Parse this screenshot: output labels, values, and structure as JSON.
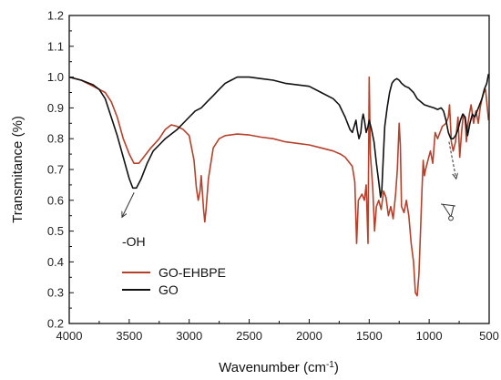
{
  "chart_data": {
    "type": "line",
    "title": "",
    "xlabel": "Wavenumber (cm",
    "xlabel_sup": "-1",
    "xlabel_close": ")",
    "ylabel": "Transmitance (%)",
    "xlim": [
      4000,
      500
    ],
    "ylim": [
      0.2,
      1.2
    ],
    "x_reversed": true,
    "x_ticks": [
      4000,
      3500,
      3000,
      2500,
      2000,
      1500,
      1000,
      500
    ],
    "x_tick_labels": [
      "4000",
      "3500",
      "3000",
      "2500",
      "2000",
      "1500",
      "1000",
      "500"
    ],
    "y_ticks": [
      0.2,
      0.3,
      0.4,
      0.5,
      0.6,
      0.7,
      0.8,
      0.9,
      1.0,
      1.1,
      1.2
    ],
    "y_tick_labels": [
      "0.2",
      "0.3",
      "0.4",
      "0.5",
      "0.6",
      "0.7",
      "0.8",
      "0.9",
      "1.0",
      "1.1",
      "1.2"
    ],
    "grid": false,
    "legend_position": "lower-left",
    "series": [
      {
        "name": "GO-EHBPE",
        "color": "#b5412c",
        "points": [
          [
            4000,
            1.0
          ],
          [
            3900,
            0.99
          ],
          [
            3800,
            0.97
          ],
          [
            3750,
            0.96
          ],
          [
            3700,
            0.95
          ],
          [
            3650,
            0.92
          ],
          [
            3600,
            0.87
          ],
          [
            3550,
            0.8
          ],
          [
            3500,
            0.75
          ],
          [
            3460,
            0.72
          ],
          [
            3420,
            0.72
          ],
          [
            3380,
            0.74
          ],
          [
            3320,
            0.77
          ],
          [
            3250,
            0.8
          ],
          [
            3200,
            0.83
          ],
          [
            3150,
            0.845
          ],
          [
            3100,
            0.84
          ],
          [
            3050,
            0.83
          ],
          [
            3000,
            0.81
          ],
          [
            2960,
            0.73
          ],
          [
            2940,
            0.64
          ],
          [
            2925,
            0.6
          ],
          [
            2910,
            0.63
          ],
          [
            2900,
            0.68
          ],
          [
            2880,
            0.57
          ],
          [
            2870,
            0.53
          ],
          [
            2860,
            0.57
          ],
          [
            2840,
            0.67
          ],
          [
            2800,
            0.77
          ],
          [
            2750,
            0.8
          ],
          [
            2700,
            0.81
          ],
          [
            2600,
            0.815
          ],
          [
            2500,
            0.812
          ],
          [
            2400,
            0.805
          ],
          [
            2300,
            0.8
          ],
          [
            2200,
            0.79
          ],
          [
            2100,
            0.785
          ],
          [
            2000,
            0.78
          ],
          [
            1900,
            0.77
          ],
          [
            1800,
            0.76
          ],
          [
            1740,
            0.75
          ],
          [
            1700,
            0.74
          ],
          [
            1660,
            0.72
          ],
          [
            1640,
            0.71
          ],
          [
            1620,
            0.66
          ],
          [
            1605,
            0.46
          ],
          [
            1590,
            0.6
          ],
          [
            1560,
            0.62
          ],
          [
            1540,
            0.6
          ],
          [
            1525,
            0.65
          ],
          [
            1510,
            0.46
          ],
          [
            1500,
            1.0
          ],
          [
            1490,
            0.75
          ],
          [
            1470,
            0.64
          ],
          [
            1455,
            0.5
          ],
          [
            1440,
            0.58
          ],
          [
            1420,
            0.6
          ],
          [
            1400,
            0.57
          ],
          [
            1380,
            0.63
          ],
          [
            1360,
            0.61
          ],
          [
            1340,
            0.55
          ],
          [
            1320,
            0.58
          ],
          [
            1300,
            0.54
          ],
          [
            1280,
            0.62
          ],
          [
            1265,
            0.7
          ],
          [
            1250,
            0.85
          ],
          [
            1240,
            0.78
          ],
          [
            1230,
            0.58
          ],
          [
            1210,
            0.56
          ],
          [
            1190,
            0.6
          ],
          [
            1170,
            0.55
          ],
          [
            1150,
            0.46
          ],
          [
            1130,
            0.4
          ],
          [
            1115,
            0.3
          ],
          [
            1100,
            0.29
          ],
          [
            1085,
            0.36
          ],
          [
            1070,
            0.52
          ],
          [
            1060,
            0.63
          ],
          [
            1050,
            0.73
          ],
          [
            1040,
            0.68
          ],
          [
            1030,
            0.7
          ],
          [
            1010,
            0.73
          ],
          [
            990,
            0.76
          ],
          [
            970,
            0.72
          ],
          [
            950,
            0.82
          ],
          [
            930,
            0.8
          ],
          [
            910,
            0.82
          ],
          [
            890,
            0.84
          ],
          [
            860,
            0.85
          ],
          [
            840,
            0.87
          ],
          [
            830,
            0.91
          ],
          [
            815,
            0.79
          ],
          [
            800,
            0.76
          ],
          [
            780,
            0.79
          ],
          [
            760,
            0.87
          ],
          [
            745,
            0.74
          ],
          [
            730,
            0.82
          ],
          [
            715,
            0.88
          ],
          [
            700,
            0.86
          ],
          [
            690,
            0.79
          ],
          [
            680,
            0.84
          ],
          [
            665,
            0.88
          ],
          [
            650,
            0.91
          ],
          [
            630,
            0.85
          ],
          [
            610,
            0.89
          ],
          [
            590,
            0.85
          ],
          [
            575,
            0.9
          ],
          [
            560,
            0.93
          ],
          [
            545,
            0.95
          ],
          [
            530,
            0.96
          ],
          [
            515,
            0.9
          ],
          [
            505,
            0.86
          ]
        ]
      },
      {
        "name": "GO",
        "color": "#111111",
        "points": [
          [
            4000,
            1.0
          ],
          [
            3900,
            0.99
          ],
          [
            3800,
            0.975
          ],
          [
            3750,
            0.96
          ],
          [
            3700,
            0.93
          ],
          [
            3650,
            0.87
          ],
          [
            3600,
            0.81
          ],
          [
            3550,
            0.74
          ],
          [
            3500,
            0.67
          ],
          [
            3470,
            0.64
          ],
          [
            3440,
            0.64
          ],
          [
            3400,
            0.67
          ],
          [
            3350,
            0.72
          ],
          [
            3300,
            0.76
          ],
          [
            3250,
            0.78
          ],
          [
            3200,
            0.8
          ],
          [
            3100,
            0.83
          ],
          [
            3000,
            0.87
          ],
          [
            2950,
            0.89
          ],
          [
            2900,
            0.9
          ],
          [
            2850,
            0.92
          ],
          [
            2800,
            0.94
          ],
          [
            2750,
            0.96
          ],
          [
            2700,
            0.98
          ],
          [
            2650,
            0.99
          ],
          [
            2600,
            1.0
          ],
          [
            2500,
            1.0
          ],
          [
            2400,
            0.995
          ],
          [
            2300,
            0.99
          ],
          [
            2200,
            0.98
          ],
          [
            2100,
            0.975
          ],
          [
            2000,
            0.97
          ],
          [
            1900,
            0.95
          ],
          [
            1800,
            0.93
          ],
          [
            1750,
            0.91
          ],
          [
            1700,
            0.87
          ],
          [
            1660,
            0.83
          ],
          [
            1640,
            0.82
          ],
          [
            1625,
            0.84
          ],
          [
            1610,
            0.86
          ],
          [
            1600,
            0.83
          ],
          [
            1585,
            0.8
          ],
          [
            1570,
            0.82
          ],
          [
            1560,
            0.86
          ],
          [
            1550,
            0.88
          ],
          [
            1540,
            0.86
          ],
          [
            1525,
            0.82
          ],
          [
            1510,
            0.84
          ],
          [
            1500,
            0.86
          ],
          [
            1480,
            0.83
          ],
          [
            1460,
            0.79
          ],
          [
            1440,
            0.72
          ],
          [
            1420,
            0.66
          ],
          [
            1405,
            0.61
          ],
          [
            1395,
            0.63
          ],
          [
            1380,
            0.76
          ],
          [
            1370,
            0.84
          ],
          [
            1350,
            0.9
          ],
          [
            1330,
            0.95
          ],
          [
            1310,
            0.98
          ],
          [
            1290,
            0.99
          ],
          [
            1270,
            0.995
          ],
          [
            1250,
            0.99
          ],
          [
            1230,
            0.98
          ],
          [
            1200,
            0.97
          ],
          [
            1170,
            0.965
          ],
          [
            1130,
            0.95
          ],
          [
            1100,
            0.93
          ],
          [
            1070,
            0.92
          ],
          [
            1040,
            0.91
          ],
          [
            1000,
            0.905
          ],
          [
            960,
            0.9
          ],
          [
            930,
            0.895
          ],
          [
            900,
            0.9
          ],
          [
            880,
            0.89
          ],
          [
            860,
            0.86
          ],
          [
            840,
            0.82
          ],
          [
            820,
            0.8
          ],
          [
            800,
            0.8
          ],
          [
            780,
            0.81
          ],
          [
            760,
            0.83
          ],
          [
            740,
            0.86
          ],
          [
            720,
            0.88
          ],
          [
            700,
            0.87
          ],
          [
            680,
            0.81
          ],
          [
            660,
            0.85
          ],
          [
            640,
            0.88
          ],
          [
            620,
            0.87
          ],
          [
            600,
            0.89
          ],
          [
            580,
            0.91
          ],
          [
            560,
            0.93
          ],
          [
            540,
            0.96
          ],
          [
            520,
            0.98
          ],
          [
            505,
            1.01
          ]
        ]
      }
    ],
    "annotations": [
      {
        "text": "-OH",
        "arrow_from": [
          3430,
          0.59
        ],
        "arrow_to": [
          3470,
          0.64
        ],
        "text_at": [
          3460,
          0.5
        ]
      },
      {
        "arrow_from": [
          830,
          0.8
        ],
        "arrow_to": [
          790,
          0.66
        ]
      }
    ]
  }
}
